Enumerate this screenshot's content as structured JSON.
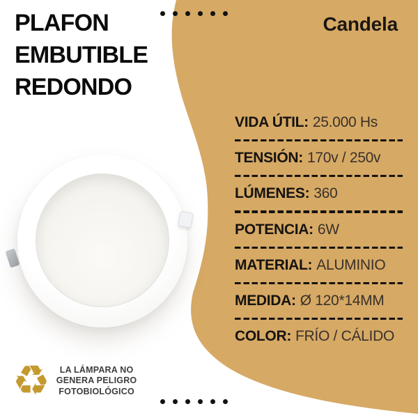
{
  "title": {
    "lines": [
      "PLAFON",
      "EMBUTIBLE",
      "REDONDO"
    ]
  },
  "brand": {
    "name": "Candela"
  },
  "specs": {
    "items": [
      {
        "label": "VIDA ÚTIL:",
        "value": "25.000 Hs"
      },
      {
        "label": "TENSIÓN:",
        "value": "170v / 250v"
      },
      {
        "label": "LÚMENES:",
        "value": "360"
      },
      {
        "label": "POTENCIA:",
        "value": "6W"
      },
      {
        "label": "MATERIAL:",
        "value": "ALUMINIO"
      },
      {
        "label": "MEDIDA:",
        "value": "Ø 120*14MM"
      },
      {
        "label": "COLOR:",
        "value": "FRÍO / CÁLIDO"
      }
    ]
  },
  "footer": {
    "recycle_icon": "♻",
    "note_lines": [
      "LA LÁMPARA NO",
      "GENERA PELIGRO",
      "FOTOBIOLÓGICO"
    ]
  },
  "decor": {
    "top_dots_count": 6,
    "bottom_dots_count": 6
  },
  "colors": {
    "blob": "#d6a965",
    "text_black": "#161310",
    "value_brown": "#3a3129",
    "recycle_gold": "#c49a30",
    "dot_black": "#121212"
  }
}
